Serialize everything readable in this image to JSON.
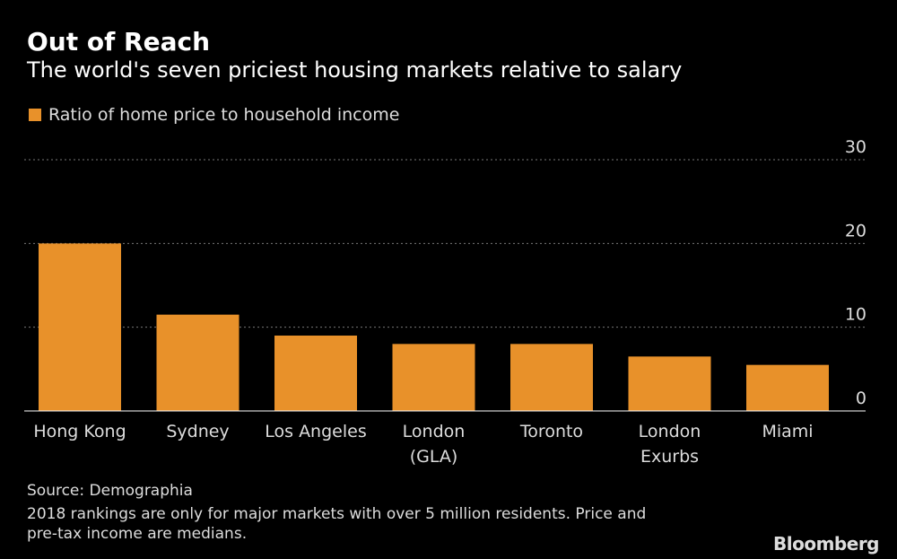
{
  "header": {
    "title": "Out of Reach",
    "subtitle": "The world's seven priciest housing markets relative to salary"
  },
  "colors": {
    "bar": "#e8912a",
    "grid": "#777777",
    "axis": "#ffffff",
    "text": "#dddddd"
  },
  "chart_data": {
    "type": "bar",
    "title": "Out of Reach",
    "subtitle": "The world's seven priciest housing markets relative to salary",
    "legend": "Ratio of home price to household income",
    "categories": [
      [
        "Hong Kong"
      ],
      [
        "Sydney"
      ],
      [
        "Los Angeles"
      ],
      [
        "London",
        "(GLA)"
      ],
      [
        "Toronto"
      ],
      [
        "London",
        "Exurbs"
      ],
      [
        "Miami"
      ]
    ],
    "values": [
      20.0,
      11.5,
      9.0,
      8.0,
      8.0,
      6.5,
      5.5
    ],
    "ylim": [
      0,
      30
    ],
    "yticks": [
      0,
      10,
      20,
      30
    ],
    "xlabel": "",
    "ylabel": ""
  },
  "footer": {
    "source": "Source: Demographia",
    "note_line1": "2018 rankings are only for major markets with over 5 million residents. Price and",
    "note_line2": "pre-tax income are medians.",
    "brand": "Bloomberg"
  }
}
